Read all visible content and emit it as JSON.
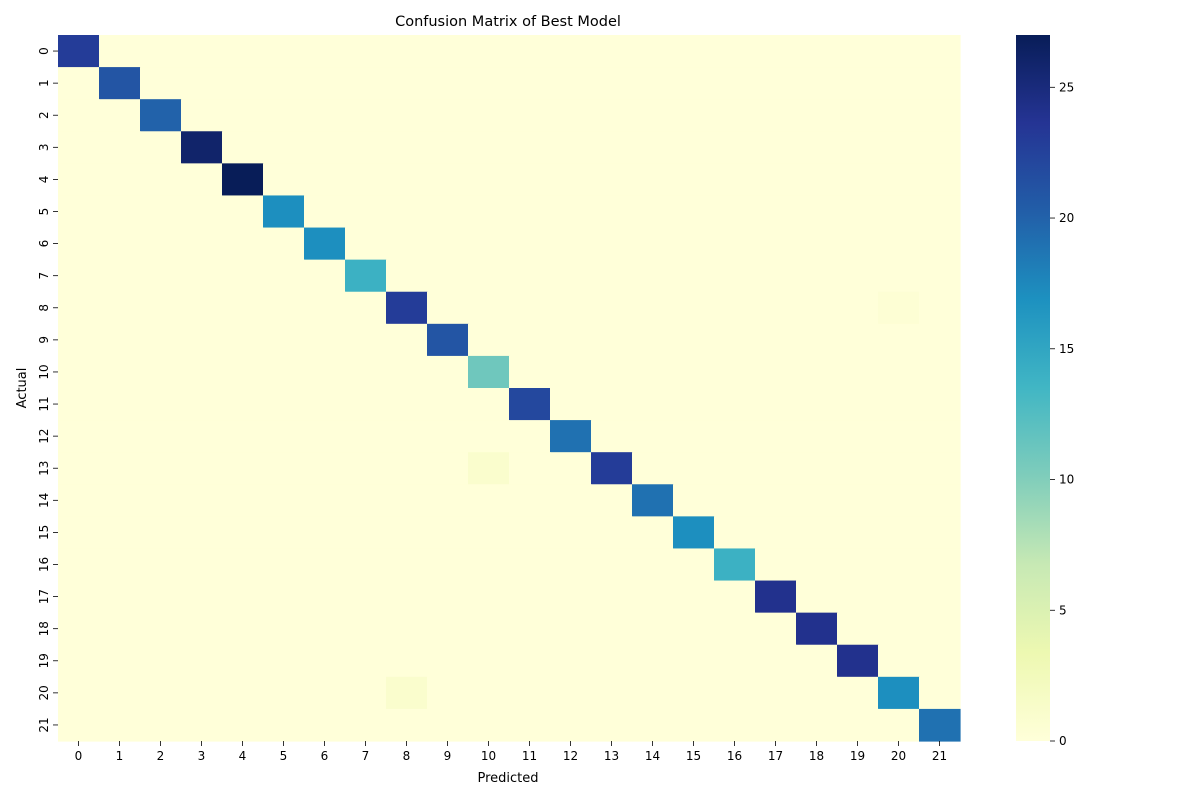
{
  "chart_data": {
    "type": "heatmap",
    "title": "Confusion Matrix of Best Model",
    "xlabel": "Predicted",
    "ylabel": "Actual",
    "x_categories": [
      "0",
      "1",
      "2",
      "3",
      "4",
      "5",
      "6",
      "7",
      "8",
      "9",
      "10",
      "11",
      "12",
      "13",
      "14",
      "15",
      "16",
      "17",
      "18",
      "19",
      "20",
      "21"
    ],
    "y_categories": [
      "0",
      "1",
      "2",
      "3",
      "4",
      "5",
      "6",
      "7",
      "8",
      "9",
      "10",
      "11",
      "12",
      "13",
      "14",
      "15",
      "16",
      "17",
      "18",
      "19",
      "20",
      "21"
    ],
    "diagonal_values": [
      23,
      21,
      20,
      26,
      27,
      17,
      17,
      14,
      23,
      21,
      11,
      22,
      19,
      23,
      19,
      17,
      14,
      24,
      24,
      24,
      17,
      19
    ],
    "off_diagonal": [
      {
        "actual": 8,
        "predicted": 20,
        "value": 0.4
      },
      {
        "actual": 13,
        "predicted": 10,
        "value": 1
      },
      {
        "actual": 20,
        "predicted": 8,
        "value": 1
      }
    ],
    "colormap": "YlGnBu",
    "colorbar": {
      "range": [
        0,
        27
      ],
      "ticks": [
        "0",
        "5",
        "10",
        "15",
        "20",
        "25"
      ]
    }
  }
}
